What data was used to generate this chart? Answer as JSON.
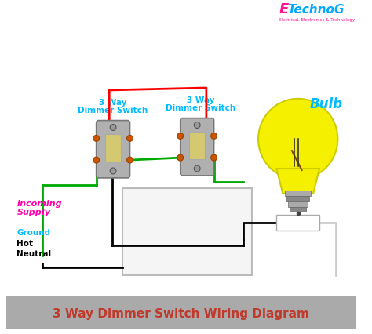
{
  "title": "3 Way Dimmer Switch Wiring Diagram",
  "title_color": "#c0392b",
  "title_fontsize": 11,
  "bg_color": "#ffffff",
  "footer_bg": "#aaaaaa",
  "switch1_label_line1": "3 Way",
  "switch1_label_line2": "Dimmer Switch",
  "switch2_label_line1": "3 Way",
  "switch2_label_line2": "Dimmer Switch",
  "bulb_label": "Bulb",
  "incoming_label_line1": "Incoming",
  "incoming_label_line2": "Supply",
  "ground_label": "Ground",
  "hot_label": "Hot",
  "neutral_label": "Neutral",
  "label_color_incoming": "#ff00aa",
  "label_color_ground": "#00bbff",
  "label_color_hot": "#000000",
  "label_color_neutral": "#000000",
  "label_color_bulb": "#00bbff",
  "label_color_switch": "#00bbff",
  "wire_red": "#ff0000",
  "wire_black": "#000000",
  "wire_green": "#00aa00",
  "wire_white": "#cccccc",
  "logo_E_color": "#ff1493",
  "logo_technog_color": "#00aaff",
  "logo_sub_color": "#ff1493",
  "switch_body_color": "#b0b0b0",
  "switch_inner_color": "#d4c870",
  "switch_screw_color": "#888888",
  "switch_terminal_color": "#cc5500",
  "bulb_yellow": "#f5f000",
  "bulb_outline": "#cccc00",
  "bulb_base_color": "#aaaaaa",
  "bulb_filament_color": "#8b4513",
  "box_fill": "#f5f5f5",
  "box_edge": "#bbbbbb"
}
